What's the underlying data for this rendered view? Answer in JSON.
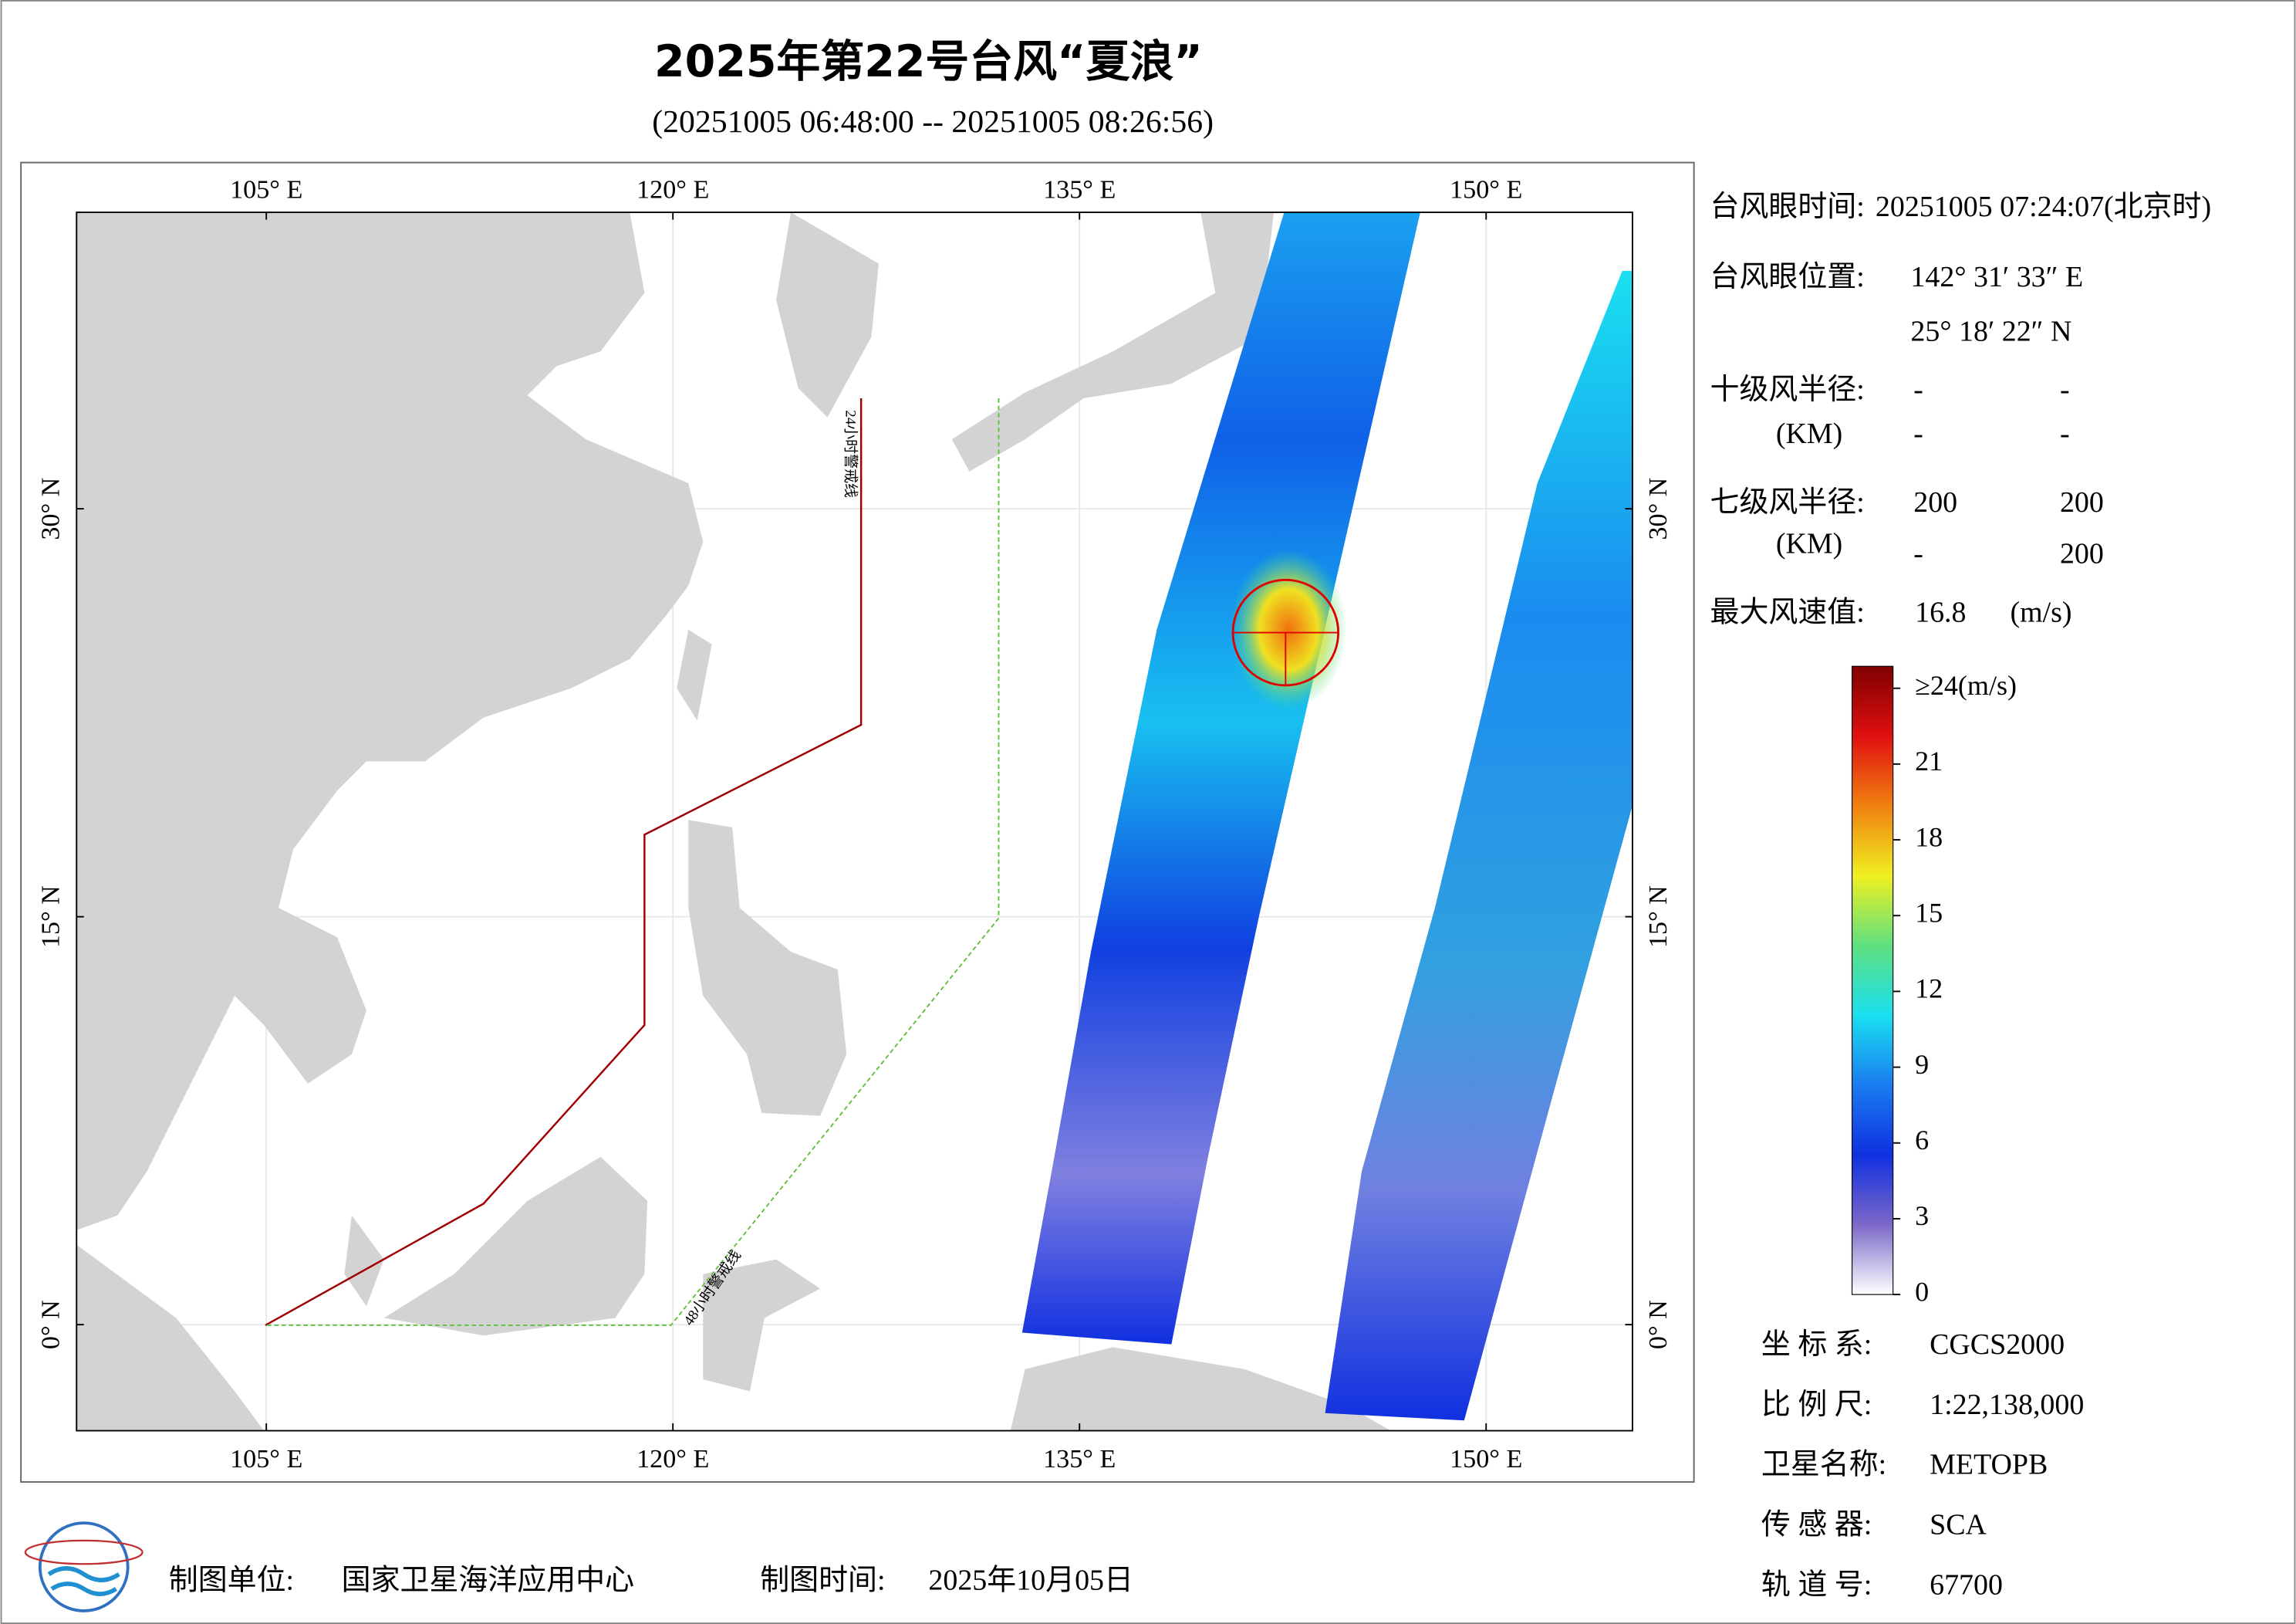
{
  "header": {
    "title": "2025年第22号台风“夏浪”",
    "subtitle": "(20251005 06:48:00 -- 20251005 08:26:56)"
  },
  "map": {
    "xlim": [
      98,
      155.4
    ],
    "ylim": [
      -3.9,
      40.9
    ],
    "xticks": [
      {
        "value": 105,
        "label": "105° E"
      },
      {
        "value": 120,
        "label": "120° E"
      },
      {
        "value": 135,
        "label": "135° E"
      },
      {
        "value": 150,
        "label": "150° E"
      }
    ],
    "yticks": [
      {
        "value": 0,
        "label": "0° N"
      },
      {
        "value": 15,
        "label": "15° N"
      },
      {
        "value": 30,
        "label": "30° N"
      }
    ],
    "grid": true,
    "warning_24h": "24小时警戒线",
    "warning_48h": "48小时警戒线"
  },
  "colorbar": {
    "clim": [
      0,
      24
    ],
    "ticks": [
      0,
      3,
      6,
      9,
      12,
      15,
      18,
      21,
      {
        "value": 24,
        "label": "≥24(m/s)"
      }
    ],
    "colors": [
      "#ffffff",
      "#7b68c8",
      "#1030e0",
      "#1a7cf0",
      "#19e0f0",
      "#5fe080",
      "#f0f020",
      "#f08010",
      "#e01010",
      "#800000"
    ]
  },
  "info": {
    "eye_time_label": "台风眼时间:",
    "eye_time": "20251005 07:24:07(北京时)",
    "eye_position_label": "台风眼位置:",
    "eye_lon": "142° 31′ 33″ E",
    "eye_lat": "25° 18′ 22″ N",
    "r10_label": "十级风半径:",
    "r10_unit": "(KM)",
    "r10": [
      [
        "-",
        "-"
      ],
      [
        "-",
        "-"
      ]
    ],
    "r7_label": "七级风半径:",
    "r7_unit": "(KM)",
    "r7": [
      [
        "200",
        "200"
      ],
      [
        "-",
        "200"
      ]
    ],
    "max_wind_label": "最大风速值:",
    "max_wind": 16.8,
    "max_wind_unit": "(m/s)"
  },
  "meta": [
    {
      "label": "坐 标 系:",
      "value": "CGCS2000"
    },
    {
      "label": "比 例 尺:",
      "value": "1:22,138,000"
    },
    {
      "label": "卫星名称:",
      "value": "METOPB"
    },
    {
      "label": "传 感 器:",
      "value": "SCA"
    },
    {
      "label": "轨 道 号:",
      "value": "67700"
    }
  ],
  "footer": {
    "unit_label": "制图单位:",
    "unit": "国家卫星海洋应用中心",
    "time_label": "制图时间:",
    "time": "2025年10月05日"
  }
}
